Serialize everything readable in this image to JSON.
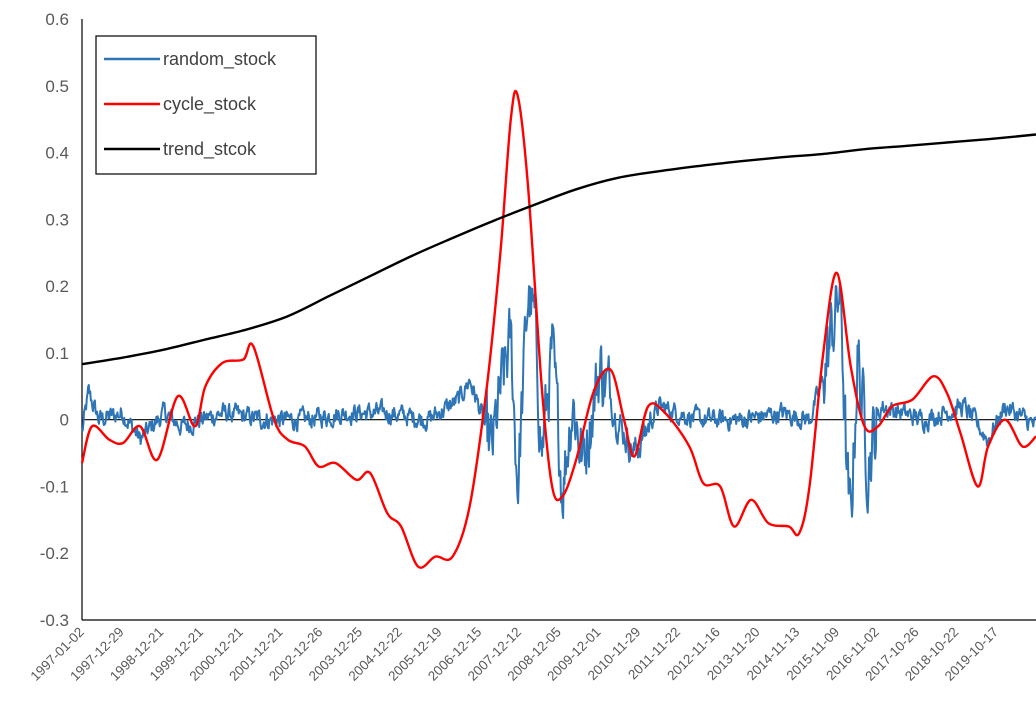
{
  "chart_data": {
    "type": "line",
    "title": "",
    "xlabel": "",
    "ylabel": "",
    "ylim": [
      -0.3,
      0.6
    ],
    "yticks": [
      "0.6",
      "0.5",
      "0.4",
      "0.3",
      "0.2",
      "0.1",
      "0",
      "-0.1",
      "-0.2",
      "-0.3"
    ],
    "x_tick_labels": [
      "1997-01-02",
      "1997-12-29",
      "1998-12-21",
      "1999-12-21",
      "2000-12-21",
      "2001-12-21",
      "2002-12-26",
      "2003-12-25",
      "2004-12-22",
      "2005-12-19",
      "2006-12-15",
      "2007-12-12",
      "2008-12-05",
      "2009-12-01",
      "2010-11-29",
      "2011-11-22",
      "2012-11-16",
      "2013-11-20",
      "2014-11-13",
      "2015-11-09",
      "2016-11-02",
      "2017-10-26",
      "2018-10-22",
      "2019-10-17"
    ],
    "grid": false,
    "legend_position": "top-left",
    "series": [
      {
        "name": "random_stock",
        "color": "#2E75B6",
        "noisy": true,
        "key_points": [
          [
            "1997-01-02",
            -0.02
          ],
          [
            "1997-03-01",
            0.04
          ],
          [
            "1997-06-01",
            0.0
          ],
          [
            "1998-01-01",
            0.01
          ],
          [
            "1998-06-01",
            -0.03
          ],
          [
            "1999-01-01",
            0.01
          ],
          [
            "1999-06-01",
            -0.01
          ],
          [
            "2000-06-01",
            0.01
          ],
          [
            "2001-06-01",
            0.0
          ],
          [
            "2002-06-01",
            0.0
          ],
          [
            "2003-06-01",
            0.01
          ],
          [
            "2004-06-01",
            0.01
          ],
          [
            "2005-06-01",
            0.0
          ],
          [
            "2006-03-01",
            0.03
          ],
          [
            "2006-06-01",
            0.06
          ],
          [
            "2006-10-01",
            0.0
          ],
          [
            "2006-12-15",
            -0.05
          ],
          [
            "2007-03-01",
            0.04
          ],
          [
            "2007-06-01",
            0.12
          ],
          [
            "2007-08-01",
            -0.1
          ],
          [
            "2007-11-01",
            0.19
          ],
          [
            "2008-01-01",
            0.14
          ],
          [
            "2008-03-01",
            -0.05
          ],
          [
            "2008-06-01",
            0.1
          ],
          [
            "2008-09-01",
            -0.1
          ],
          [
            "2008-12-01",
            0.03
          ],
          [
            "2009-03-01",
            -0.06
          ],
          [
            "2009-08-01",
            0.08
          ],
          [
            "2010-01-01",
            0.0
          ],
          [
            "2010-06-01",
            -0.05
          ],
          [
            "2011-01-01",
            0.02
          ],
          [
            "2012-01-01",
            0.0
          ],
          [
            "2013-01-01",
            0.0
          ],
          [
            "2014-01-01",
            0.01
          ],
          [
            "2014-09-01",
            0.0
          ],
          [
            "2015-01-01",
            0.06
          ],
          [
            "2015-06-01",
            0.2
          ],
          [
            "2015-08-01",
            -0.1
          ],
          [
            "2015-09-01",
            -0.16
          ],
          [
            "2015-11-01",
            0.1
          ],
          [
            "2016-02-01",
            -0.06
          ],
          [
            "2016-06-01",
            0.02
          ],
          [
            "2017-06-01",
            0.0
          ],
          [
            "2018-06-01",
            0.02
          ],
          [
            "2019-01-01",
            -0.03
          ],
          [
            "2019-06-01",
            0.02
          ],
          [
            "2020-03-01",
            -0.01
          ]
        ]
      },
      {
        "name": "cycle_stock",
        "color": "#FF0000",
        "key_points": [
          [
            "1997-01-02",
            -0.065
          ],
          [
            "1997-04-01",
            -0.01
          ],
          [
            "1997-09-01",
            -0.03
          ],
          [
            "1998-01-01",
            -0.035
          ],
          [
            "1998-06-01",
            -0.01
          ],
          [
            "1998-11-01",
            -0.06
          ],
          [
            "1999-05-01",
            0.035
          ],
          [
            "1999-10-01",
            -0.01
          ],
          [
            "2000-01-01",
            0.05
          ],
          [
            "2000-06-01",
            0.085
          ],
          [
            "2000-12-01",
            0.09
          ],
          [
            "2001-03-01",
            0.11
          ],
          [
            "2001-09-01",
            0.0
          ],
          [
            "2002-01-01",
            -0.03
          ],
          [
            "2002-06-01",
            -0.04
          ],
          [
            "2002-10-01",
            -0.07
          ],
          [
            "2003-03-01",
            -0.065
          ],
          [
            "2003-09-01",
            -0.09
          ],
          [
            "2004-01-01",
            -0.08
          ],
          [
            "2004-06-01",
            -0.14
          ],
          [
            "2004-10-01",
            -0.16
          ],
          [
            "2005-03-01",
            -0.22
          ],
          [
            "2005-08-01",
            -0.205
          ],
          [
            "2006-01-01",
            -0.205
          ],
          [
            "2006-06-01",
            -0.13
          ],
          [
            "2006-11-01",
            0.05
          ],
          [
            "2007-03-01",
            0.25
          ],
          [
            "2007-06-01",
            0.45
          ],
          [
            "2007-08-01",
            0.485
          ],
          [
            "2007-11-01",
            0.35
          ],
          [
            "2008-03-01",
            0.05
          ],
          [
            "2008-06-01",
            -0.1
          ],
          [
            "2008-09-01",
            -0.115
          ],
          [
            "2009-01-01",
            -0.06
          ],
          [
            "2009-06-01",
            0.04
          ],
          [
            "2009-11-01",
            0.075
          ],
          [
            "2010-03-01",
            0.0
          ],
          [
            "2010-06-01",
            -0.055
          ],
          [
            "2010-10-01",
            0.02
          ],
          [
            "2011-03-01",
            0.01
          ],
          [
            "2011-10-01",
            -0.04
          ],
          [
            "2012-02-01",
            -0.095
          ],
          [
            "2012-07-01",
            -0.1
          ],
          [
            "2012-11-01",
            -0.16
          ],
          [
            "2013-04-01",
            -0.12
          ],
          [
            "2013-09-01",
            -0.155
          ],
          [
            "2014-03-01",
            -0.16
          ],
          [
            "2014-06-01",
            -0.17
          ],
          [
            "2014-09-01",
            -0.1
          ],
          [
            "2015-01-01",
            0.1
          ],
          [
            "2015-05-01",
            0.22
          ],
          [
            "2015-09-01",
            0.08
          ],
          [
            "2016-01-01",
            -0.01
          ],
          [
            "2016-05-01",
            -0.01
          ],
          [
            "2016-09-01",
            0.02
          ],
          [
            "2017-03-01",
            0.03
          ],
          [
            "2017-09-01",
            0.065
          ],
          [
            "2018-01-01",
            0.04
          ],
          [
            "2018-05-01",
            -0.02
          ],
          [
            "2018-10-01",
            -0.1
          ],
          [
            "2019-01-01",
            -0.04
          ],
          [
            "2019-06-01",
            0.0
          ],
          [
            "2019-11-01",
            -0.04
          ],
          [
            "2020-03-01",
            -0.025
          ]
        ]
      },
      {
        "name": "trend_stcok",
        "color": "#000000",
        "key_points": [
          [
            "1997-01-02",
            0.083
          ],
          [
            "1998-01-01",
            0.093
          ],
          [
            "1999-01-01",
            0.105
          ],
          [
            "2000-01-01",
            0.12
          ],
          [
            "2001-01-01",
            0.135
          ],
          [
            "2002-01-01",
            0.155
          ],
          [
            "2003-01-01",
            0.185
          ],
          [
            "2004-01-01",
            0.215
          ],
          [
            "2005-01-01",
            0.245
          ],
          [
            "2006-01-01",
            0.272
          ],
          [
            "2007-01-01",
            0.298
          ],
          [
            "2008-01-01",
            0.322
          ],
          [
            "2009-01-01",
            0.345
          ],
          [
            "2010-01-01",
            0.362
          ],
          [
            "2011-01-01",
            0.372
          ],
          [
            "2012-01-01",
            0.38
          ],
          [
            "2013-01-01",
            0.387
          ],
          [
            "2014-01-01",
            0.393
          ],
          [
            "2015-01-01",
            0.398
          ],
          [
            "2016-01-01",
            0.405
          ],
          [
            "2017-01-01",
            0.41
          ],
          [
            "2018-01-01",
            0.415
          ],
          [
            "2019-01-01",
            0.42
          ],
          [
            "2020-03-01",
            0.427
          ]
        ]
      }
    ]
  }
}
